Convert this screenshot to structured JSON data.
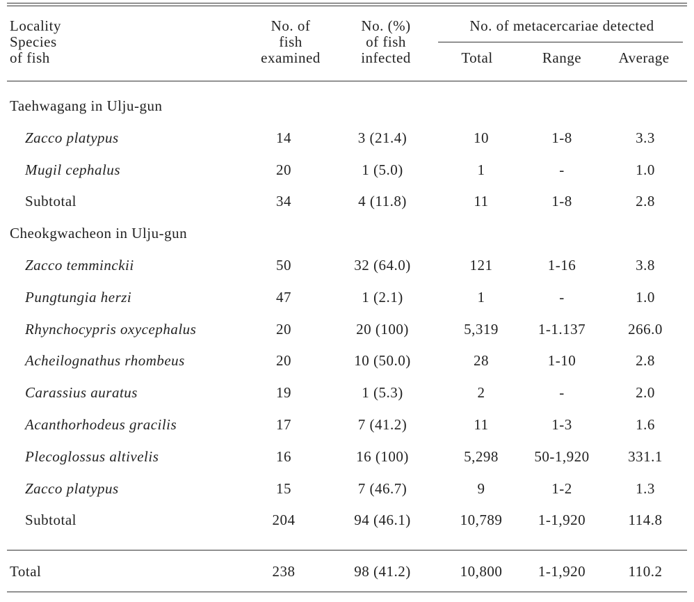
{
  "table": {
    "header": {
      "locality": [
        "Locality",
        "Species",
        "of fish"
      ],
      "examined": [
        "No. of",
        "fish",
        "examined"
      ],
      "infected": [
        "No. (%)",
        "of fish",
        "infected"
      ],
      "group": "No. of metacercariae detected",
      "total": "Total",
      "range": "Range",
      "average": "Average"
    },
    "sections": [
      {
        "title": "Taehwagang in Ulju-gun",
        "species": [
          [
            "Zacco platypus",
            "14",
            "3 (21.4)",
            "10",
            "1-8",
            "3.3"
          ],
          [
            "Mugil cephalus",
            "20",
            "1 (5.0)",
            "1",
            "-",
            "1.0"
          ]
        ],
        "subtotal": [
          "Subtotal",
          "34",
          "4 (11.8)",
          "11",
          "1-8",
          "2.8"
        ]
      },
      {
        "title": "Cheokgwacheon in Ulju-gun",
        "species": [
          [
            "Zacco temminckii",
            "50",
            "32 (64.0)",
            "121",
            "1-16",
            "3.8"
          ],
          [
            "Pungtungia herzi",
            "47",
            "1 (2.1)",
            "1",
            "-",
            "1.0"
          ],
          [
            "Rhynchocypris oxycephalus",
            "20",
            "20 (100)",
            "5,319",
            "1-1.137",
            "266.0"
          ],
          [
            "Acheilognathus rhombeus",
            "20",
            "10 (50.0)",
            "28",
            "1-10",
            "2.8"
          ],
          [
            "Carassius auratus",
            "19",
            "1 (5.3)",
            "2",
            "-",
            "2.0"
          ],
          [
            "Acanthorhodeus gracilis",
            "17",
            "7 (41.2)",
            "11",
            "1-3",
            "1.6"
          ],
          [
            "Plecoglossus altivelis",
            "16",
            "16 (100)",
            "5,298",
            "50-1,920",
            "331.1"
          ],
          [
            "Zacco platypus",
            "15",
            "7 (46.7)",
            "9",
            "1-2",
            "1.3"
          ]
        ],
        "subtotal": [
          "Subtotal",
          "204",
          "94 (46.1)",
          "10,789",
          "1-1,920",
          "114.8"
        ]
      }
    ],
    "total": [
      "Total",
      "238",
      "98 (41.2)",
      "10,800",
      "1-1,920",
      "110.2"
    ]
  }
}
